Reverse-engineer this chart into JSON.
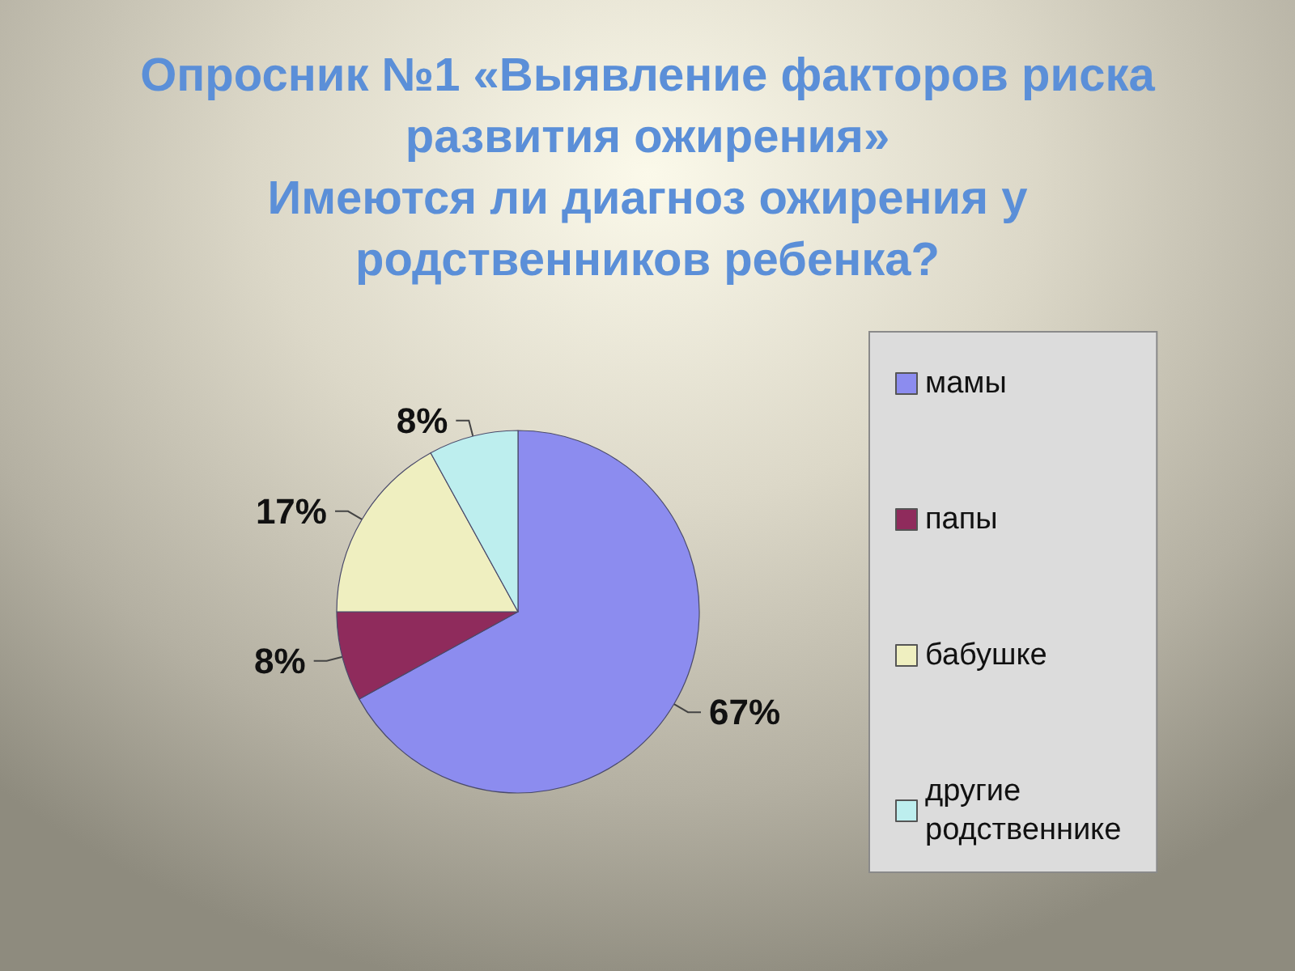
{
  "chart_data": {
    "type": "pie",
    "title": "Опросник №1 «Выявление факторов риска развития ожирения»",
    "subtitle": "Имеются ли диагноз ожирения у родственников ребенка?",
    "categories": [
      "мамы",
      "папы",
      "бабушке",
      "другие родственнике"
    ],
    "values": [
      67,
      8,
      17,
      8
    ],
    "colors": [
      "#8c8cef",
      "#8f2b5c",
      "#efefc0",
      "#bdeeee"
    ],
    "value_labels": [
      "67%",
      "8%",
      "17%",
      "8%"
    ],
    "legend": "right"
  }
}
